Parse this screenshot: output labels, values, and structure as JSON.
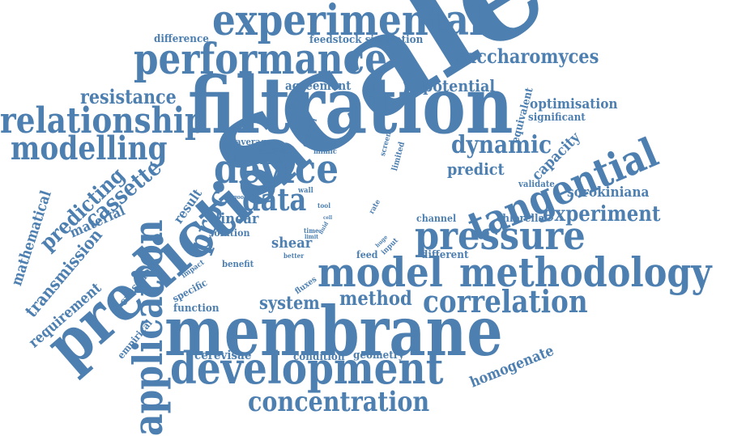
{
  "color": "#4d7fb0",
  "words": {
    "scale": "scale",
    "filtration": "filtration",
    "membrane": "membrane",
    "prediction": "prediction",
    "performance": "performance",
    "experimental": "experimental",
    "model": "model",
    "methodology": "methodology",
    "development": "development",
    "application": "application",
    "tangential": "tangential",
    "pressure": "pressure",
    "device": "device",
    "relationship": "relationship",
    "modelling": "modelling",
    "correlation": "correlation",
    "concentration": "concentration",
    "saccharomyces": "saccharomyces",
    "data": "data",
    "proc": "proc",
    "dynamic": "dynamic",
    "cassette": "cassette",
    "predicting": "predicting",
    "resistance": "resistance",
    "experiment": "experiment",
    "method": "method",
    "system": "system",
    "transmission": "transmission",
    "mathematical": "mathematical",
    "requirement": "requirement",
    "homogenate": "homogenate",
    "potential": "potential",
    "optimisation": "optimisation",
    "predict": "predict",
    "capacity": "capacity",
    "sorokiniana": "sorokiniana",
    "material": "material",
    "shear": "shear",
    "linear": "linear",
    "result": "result",
    "cerevisae": "cerevisae",
    "crossflow": "crossflow",
    "agreement": "agreement",
    "difference": "difference",
    "feedstock_simulation": "feedstock simulation",
    "significant": "significant",
    "equivalent": "equivalent",
    "validate": "validate",
    "chlorella": "chlorella",
    "channel": "channel",
    "different": "different",
    "geometry": "geometry",
    "condition": "condition",
    "function": "function",
    "specific": "specific",
    "empirical": "empirical",
    "benefit": "benefit",
    "solution": "solution",
    "average": "average",
    "studies": "studies",
    "control": "control",
    "mimic": "mimic",
    "screen": "screen",
    "limited": "limited",
    "feed": "feed",
    "input": "input",
    "fluxes": "fluxes",
    "impact": "impact",
    "better": "better",
    "time": "time",
    "tool": "tool",
    "limit": "limit",
    "wall": "wall",
    "flow": "flow",
    "work": "work",
    "good": "good",
    "rate": "rate",
    "fluid": "fluid",
    "huge": "huge",
    "cell": "cell"
  }
}
